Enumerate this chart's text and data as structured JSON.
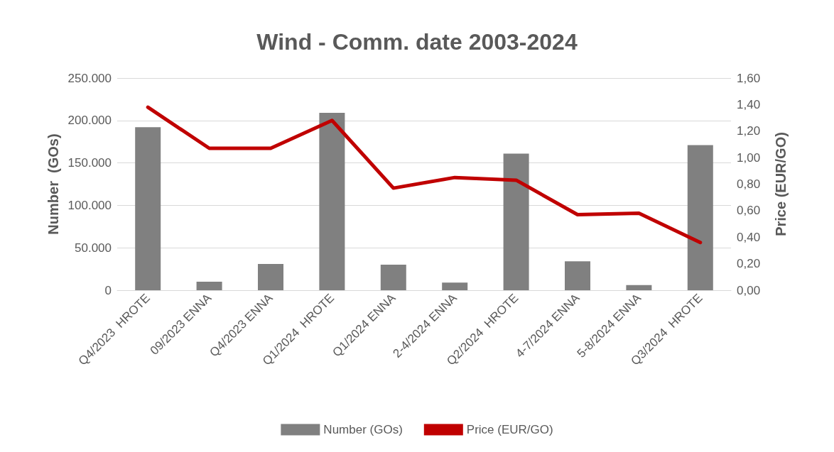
{
  "chart_data": {
    "type": "bar",
    "title": "Wind - Comm. date 2003-2024",
    "ylabel": "Number  (GOs)",
    "y2label": "Price (EUR/GO)",
    "categories": [
      "Q4/2023  HROTE",
      "09/2023 ENNA",
      "Q4/2023 ENNA",
      "Q1/2024  HROTE",
      "Q1/2024 ENNA",
      "2-4/2024 ENNA",
      "Q2/2024  HROTE",
      "4-7/2024 ENNA",
      "5-8/2024 ENNA",
      "Q3/2024  HROTE"
    ],
    "series": [
      {
        "name": "Number (GOs)",
        "color": "#808080",
        "values": [
          192000,
          10000,
          31000,
          209000,
          30000,
          9000,
          161000,
          34000,
          6000,
          171000
        ]
      },
      {
        "name": "Price (EUR/GO)",
        "type": "line",
        "axis": "y2",
        "color": "#c00000",
        "values": [
          1.38,
          1.07,
          1.07,
          1.28,
          0.77,
          0.85,
          0.83,
          0.57,
          0.58,
          0.36
        ]
      }
    ],
    "ylim": [
      0,
      250000
    ],
    "yticks": [
      {
        "value": 0,
        "label": "0"
      },
      {
        "value": 50000,
        "label": "50.000"
      },
      {
        "value": 100000,
        "label": "100.000"
      },
      {
        "value": 150000,
        "label": "150.000"
      },
      {
        "value": 200000,
        "label": "200.000"
      },
      {
        "value": 250000,
        "label": "250.000"
      }
    ],
    "y2lim": [
      0,
      1.6
    ],
    "y2ticks": [
      {
        "value": 0,
        "label": "0,00"
      },
      {
        "value": 0.2,
        "label": "0,20"
      },
      {
        "value": 0.4,
        "label": "0,40"
      },
      {
        "value": 0.6,
        "label": "0,60"
      },
      {
        "value": 0.8,
        "label": "0,80"
      },
      {
        "value": 1,
        "label": "1,00"
      },
      {
        "value": 1.2,
        "label": "1,20"
      },
      {
        "value": 1.4,
        "label": "1,40"
      },
      {
        "value": 1.6,
        "label": "1,60"
      }
    ],
    "grid": "y",
    "legend": "bottom",
    "marker": "none",
    "line_style": "solid"
  }
}
